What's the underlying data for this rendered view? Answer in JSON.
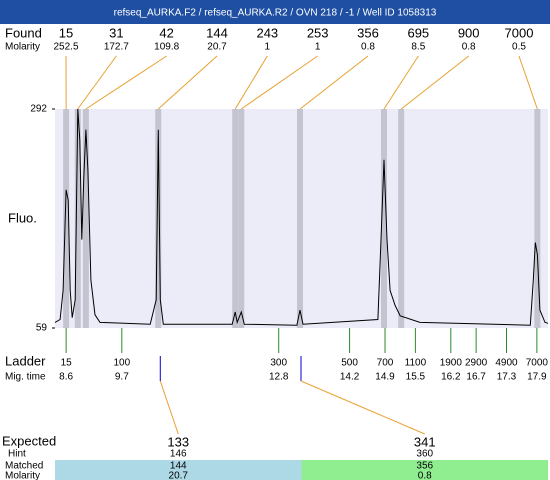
{
  "title": "refseq_AURKA.F2 / refseq_AURKA.R2 / OVN 218 / -1 / Well ID 1058313",
  "chart_data": {
    "type": "electropherogram",
    "y_label": "Fluo.",
    "xlim": [
      8.38,
      18.12
    ],
    "ylim": [
      59,
      292
    ],
    "yticks": [
      59,
      292
    ],
    "trace": {
      "color": "#000000",
      "x": [
        8.38,
        8.48,
        8.54,
        8.6,
        8.64,
        8.68,
        8.72,
        8.78,
        8.83,
        8.87,
        8.91,
        8.95,
        8.99,
        9.03,
        9.09,
        9.17,
        9.27,
        10.26,
        10.38,
        10.42,
        10.46,
        10.52,
        11.88,
        11.94,
        11.98,
        12.06,
        12.12,
        13.16,
        13.22,
        13.28,
        14.76,
        14.82,
        14.88,
        14.94,
        15.0,
        15.1,
        15.2,
        15.59,
        17.77,
        17.83,
        17.87,
        17.91,
        17.96,
        18.06,
        18.12
      ],
      "values": [
        65,
        68,
        99,
        206,
        195,
        99,
        70,
        89,
        292,
        259,
        153,
        222,
        270,
        227,
        110,
        73,
        65,
        63,
        89,
        270,
        89,
        63,
        63,
        76,
        65,
        76,
        63,
        62,
        78,
        63,
        68,
        153,
        238,
        153,
        99,
        83,
        72,
        65,
        62,
        110,
        150,
        137,
        78,
        65,
        64
      ]
    },
    "found": {
      "label": "Found",
      "molarity_label": "Molarity",
      "color": "#e8a030",
      "band_color": "#c4c4d0",
      "peaks": [
        {
          "size": 15,
          "molarity": 252.5,
          "time": 8.6
        },
        {
          "size": 31,
          "molarity": 172.7,
          "time": 8.83
        },
        {
          "size": 42,
          "molarity": 109.8,
          "time": 8.99
        },
        {
          "size": 144,
          "molarity": 20.7,
          "time": 10.42
        },
        {
          "size": 243,
          "molarity": 1,
          "time": 11.94
        },
        {
          "size": 253,
          "molarity": 1,
          "time": 12.06
        },
        {
          "size": 356,
          "molarity": 0.8,
          "time": 13.22
        },
        {
          "size": 695,
          "molarity": 8.5,
          "time": 14.88
        },
        {
          "size": 900,
          "molarity": 0.8,
          "time": 15.22
        },
        {
          "size": 7000,
          "molarity": 0.5,
          "time": 17.91
        }
      ]
    },
    "ladder": {
      "label": "Ladder",
      "time_label": "Mig. time",
      "color": "#2a8a2a",
      "sizes": [
        15,
        100,
        300,
        500,
        700,
        1100,
        1900,
        2900,
        4900,
        7000
      ],
      "times": [
        8.6,
        9.7,
        12.8,
        14.2,
        14.9,
        15.5,
        16.2,
        16.7,
        17.3,
        17.9
      ]
    },
    "expected": {
      "label": "Expected",
      "hint_label": "Hint",
      "matched_label": "Matched",
      "molarity_label": "Molarity",
      "marker_color": "#0000cc",
      "items": [
        {
          "expected": 133,
          "hint": 146,
          "matched": 144,
          "molarity": 20.7,
          "time": 10.46,
          "color": "#add8e6"
        },
        {
          "expected": 341,
          "hint": 360,
          "matched": 356,
          "molarity": 0.8,
          "time": 13.24,
          "color": "#90ee90"
        }
      ]
    }
  }
}
